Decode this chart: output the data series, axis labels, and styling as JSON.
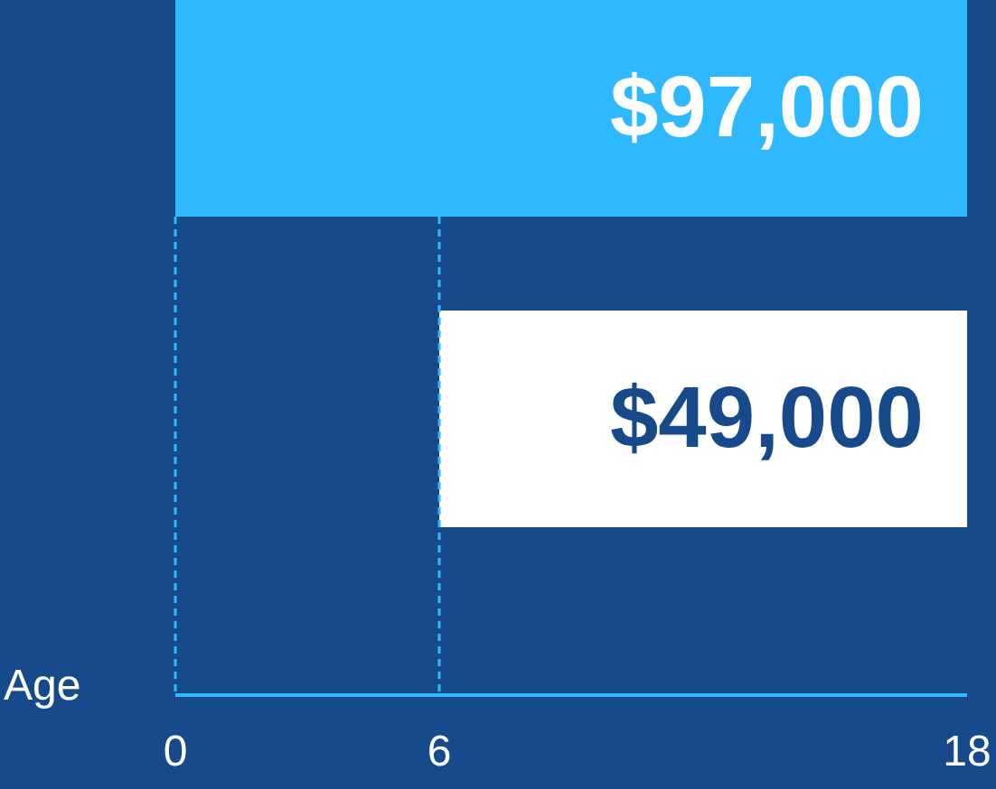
{
  "chart_data": {
    "type": "bar",
    "orientation": "horizontal",
    "categories": [
      null,
      null
    ],
    "values": [
      18,
      12
    ],
    "base": [
      0,
      6
    ],
    "colors": [
      "#2db8ff",
      "#ffffff"
    ],
    "annotations": [
      "$97,000",
      "$49,000"
    ],
    "xlabel": "Age",
    "xlim": [
      0,
      18
    ],
    "xticks": [
      0,
      6,
      18
    ],
    "tick_labels": "x",
    "ref_lines": [
      {
        "axis": "x",
        "value": 0,
        "color": "#2db8ff",
        "line_style": "dashed"
      },
      {
        "axis": "x",
        "value": 6,
        "color": "#2db8ff",
        "line_style": "dashed"
      }
    ]
  }
}
